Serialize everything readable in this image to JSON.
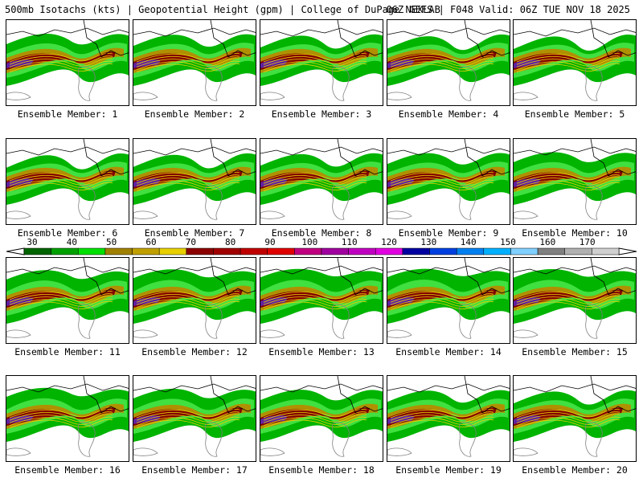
{
  "header": {
    "title_left": "500mb Isotachs (kts) | Geopotential Height (gpm) | College of DuPage NEXLAB",
    "title_right": "06Z GEFS | F048 Valid: 06Z TUE NOV 18 2025"
  },
  "members": [
    "Ensemble Member: 1",
    "Ensemble Member: 2",
    "Ensemble Member: 3",
    "Ensemble Member: 4",
    "Ensemble Member: 5",
    "Ensemble Member: 6",
    "Ensemble Member: 7",
    "Ensemble Member: 8",
    "Ensemble Member: 9",
    "Ensemble Member: 10",
    "Ensemble Member: 11",
    "Ensemble Member: 12",
    "Ensemble Member: 13",
    "Ensemble Member: 14",
    "Ensemble Member: 15",
    "Ensemble Member: 16",
    "Ensemble Member: 17",
    "Ensemble Member: 18",
    "Ensemble Member: 19",
    "Ensemble Member: 20"
  ],
  "colorbar": {
    "labels": [
      "30",
      "40",
      "50",
      "60",
      "70",
      "80",
      "90",
      "100",
      "110",
      "120",
      "130",
      "140",
      "150",
      "160",
      "170"
    ],
    "colors": [
      "#006400",
      "#00a000",
      "#00e000",
      "#a08000",
      "#c0a000",
      "#e8d000",
      "#8b0000",
      "#a00000",
      "#c00000",
      "#e00000",
      "#c00080",
      "#a000a0",
      "#c000c0",
      "#e000e0",
      "#0000a0",
      "#0040e0",
      "#0080f0",
      "#00b0ff",
      "#80d0ff",
      "#808080",
      "#b0b0b0",
      "#d0d0d0"
    ]
  },
  "map_colors": {
    "green_dark": "#007000",
    "green": "#00b400",
    "green_light": "#40e040",
    "olive": "#b09000",
    "yellow": "#e8d000",
    "darkred": "#800000",
    "red": "#a00000",
    "purple": "#6020a0",
    "blue": "#3030c0",
    "coast": "#000000",
    "land": "#808080"
  }
}
